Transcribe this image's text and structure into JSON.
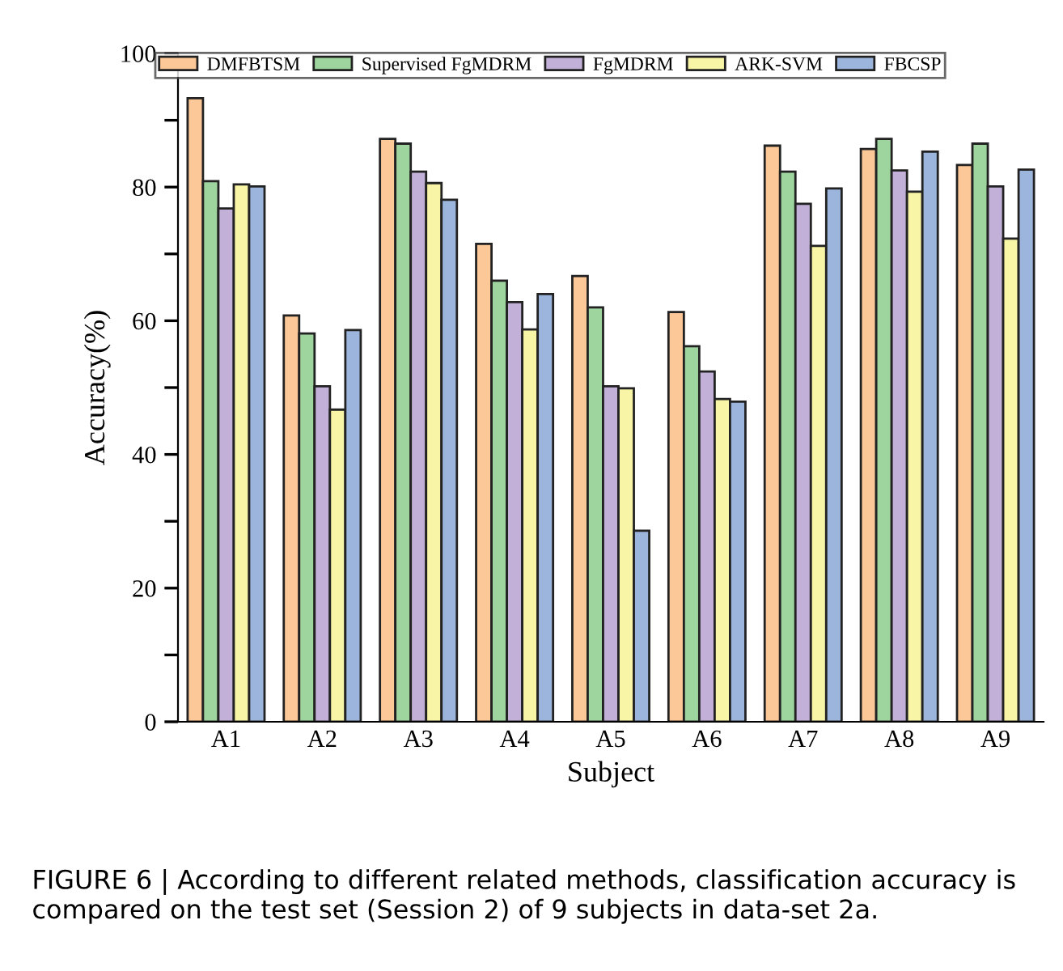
{
  "chart_data": {
    "type": "bar",
    "xlabel": "Subject",
    "ylabel": "Accuracy(%)",
    "categories": [
      "A1",
      "A2",
      "A3",
      "A4",
      "A5",
      "A6",
      "A7",
      "A8",
      "A9"
    ],
    "series": [
      {
        "name": "DMFBTSM",
        "color": "#fdc897",
        "values": [
          93.3,
          60.8,
          87.2,
          71.5,
          66.7,
          61.3,
          86.2,
          85.7,
          83.3
        ]
      },
      {
        "name": "Supervised FgMDRM",
        "color": "#9ed49d",
        "values": [
          80.9,
          58.1,
          86.5,
          66.0,
          62.0,
          56.2,
          82.3,
          87.2,
          86.5
        ]
      },
      {
        "name": "FgMDRM",
        "color": "#c2b0d8",
        "values": [
          76.8,
          50.2,
          82.3,
          62.8,
          50.2,
          52.4,
          77.5,
          82.5,
          80.1
        ]
      },
      {
        "name": "ARK-SVM",
        "color": "#f9f5a6",
        "values": [
          80.4,
          46.7,
          80.6,
          58.7,
          49.9,
          48.3,
          71.2,
          79.3,
          72.3
        ]
      },
      {
        "name": "FBCSP",
        "color": "#9cb5dc",
        "values": [
          80.1,
          58.6,
          78.1,
          64.0,
          28.6,
          47.9,
          79.8,
          85.3,
          82.6
        ]
      }
    ],
    "ylim": [
      0,
      100
    ],
    "yticks": [
      0,
      {
        "value": 10,
        "label": null
      },
      20,
      {
        "value": 30,
        "label": null
      },
      40,
      {
        "value": 50,
        "label": null
      },
      60,
      {
        "value": 70,
        "label": null
      },
      80,
      {
        "value": 90,
        "label": null
      },
      100
    ],
    "grid": false,
    "legend": "top",
    "annotations": [
      "FIGURE 6 | According to different related methods, classification accuracy is compared on the test set (Session 2) of 9 subjects in data-set 2a."
    ]
  }
}
